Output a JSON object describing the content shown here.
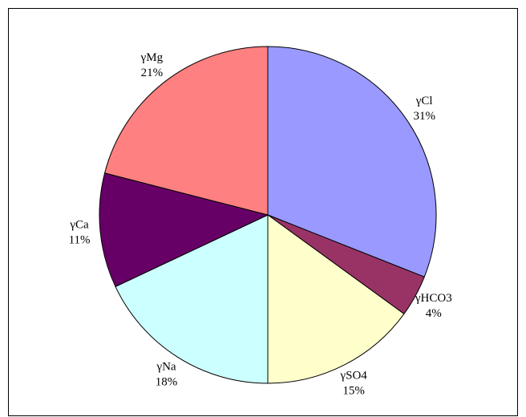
{
  "chart_data": {
    "type": "pie",
    "categories": [
      "γCl",
      "γHCO3",
      "γSO4",
      "γNa",
      "γCa",
      "γMg"
    ],
    "values": [
      31,
      4,
      15,
      18,
      11,
      21
    ],
    "value_labels": [
      "31%",
      "4%",
      "15%",
      "18%",
      "11%",
      "21%"
    ],
    "colors": [
      "#9999ff",
      "#993366",
      "#ffffcc",
      "#ccffff",
      "#660066",
      "#ff8080"
    ]
  }
}
